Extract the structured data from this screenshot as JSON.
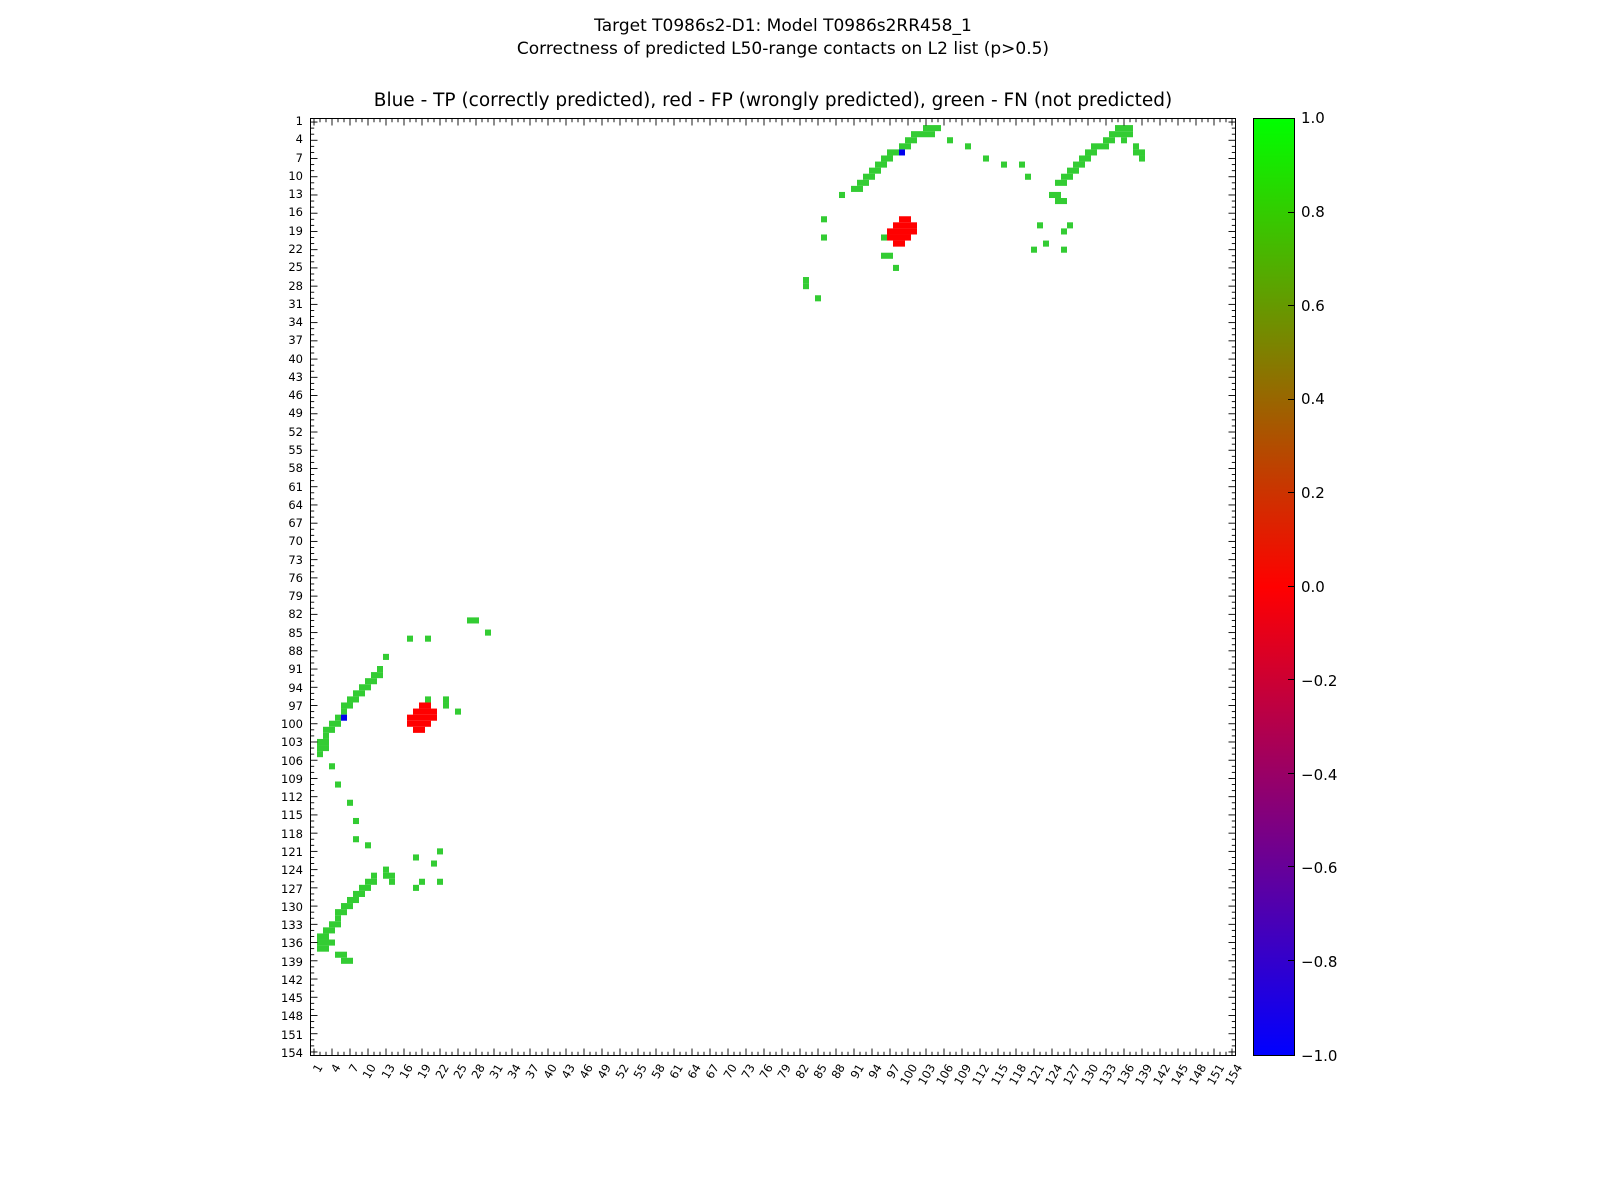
{
  "figure": {
    "suptitle": [
      "Target T0986s2-D1: Model T0986s2RR458_1",
      "Correctness of predicted L50-range contacts on L2 list (p>0.5)"
    ],
    "axes_title": "Blue - TP (correctly predicted), red - FP (wrongly predicted), green - FN (not predicted)"
  },
  "chart_data": {
    "type": "heatmap",
    "title": "Blue - TP (correctly predicted), red - FP (wrongly predicted), green - FN (not predicted)",
    "xlabel": "",
    "ylabel": "",
    "x_range": [
      1,
      154
    ],
    "y_range": [
      1,
      154
    ],
    "y_inverted": true,
    "grid": false,
    "symmetric_matrix": true,
    "tick_values": [
      1,
      4,
      7,
      10,
      13,
      16,
      19,
      22,
      25,
      28,
      31,
      34,
      37,
      40,
      43,
      46,
      49,
      52,
      55,
      58,
      61,
      64,
      67,
      70,
      73,
      76,
      79,
      82,
      85,
      88,
      91,
      94,
      97,
      100,
      103,
      106,
      109,
      112,
      115,
      118,
      121,
      124,
      127,
      130,
      133,
      136,
      139,
      142,
      145,
      148,
      151,
      154
    ],
    "colors": {
      "tp": "#0000ee",
      "fp": "#ff0000",
      "fn": "#33cc33"
    },
    "legend": {
      "tp": "TP (correctly predicted) - blue",
      "fp": "FP (wrongly predicted) - red",
      "fn": "FN (not predicted) - green"
    },
    "contacts": {
      "tp": [
        [
          6,
          99
        ]
      ],
      "fp": [
        [
          19,
          97
        ],
        [
          20,
          97
        ],
        [
          18,
          98
        ],
        [
          19,
          98
        ],
        [
          20,
          98
        ],
        [
          21,
          98
        ],
        [
          17,
          99
        ],
        [
          18,
          99
        ],
        [
          19,
          99
        ],
        [
          20,
          99
        ],
        [
          21,
          99
        ],
        [
          17,
          100
        ],
        [
          18,
          100
        ],
        [
          19,
          100
        ],
        [
          20,
          100
        ],
        [
          18,
          101
        ],
        [
          19,
          101
        ]
      ],
      "fn": [
        [
          2,
          103
        ],
        [
          2,
          104
        ],
        [
          2,
          105
        ],
        [
          3,
          101
        ],
        [
          3,
          102
        ],
        [
          3,
          103
        ],
        [
          3,
          104
        ],
        [
          4,
          100
        ],
        [
          4,
          101
        ],
        [
          5,
          99
        ],
        [
          5,
          100
        ],
        [
          6,
          97
        ],
        [
          6,
          98
        ],
        [
          7,
          96
        ],
        [
          7,
          97
        ],
        [
          8,
          95
        ],
        [
          8,
          96
        ],
        [
          9,
          94
        ],
        [
          9,
          95
        ],
        [
          10,
          93
        ],
        [
          10,
          94
        ],
        [
          11,
          92
        ],
        [
          11,
          93
        ],
        [
          12,
          91
        ],
        [
          12,
          92
        ],
        [
          13,
          89
        ],
        [
          17,
          86
        ],
        [
          20,
          86
        ],
        [
          27,
          83
        ],
        [
          28,
          83
        ],
        [
          30,
          85
        ],
        [
          20,
          96
        ],
        [
          23,
          96
        ],
        [
          23,
          97
        ],
        [
          25,
          98
        ],
        [
          4,
          107
        ],
        [
          5,
          110
        ],
        [
          7,
          113
        ],
        [
          8,
          116
        ],
        [
          8,
          119
        ],
        [
          10,
          120
        ],
        [
          11,
          125
        ],
        [
          11,
          126
        ],
        [
          10,
          126
        ],
        [
          10,
          127
        ],
        [
          9,
          127
        ],
        [
          9,
          128
        ],
        [
          8,
          128
        ],
        [
          8,
          129
        ],
        [
          7,
          129
        ],
        [
          7,
          130
        ],
        [
          6,
          130
        ],
        [
          6,
          131
        ],
        [
          5,
          131
        ],
        [
          5,
          132
        ],
        [
          5,
          133
        ],
        [
          4,
          133
        ],
        [
          4,
          134
        ],
        [
          3,
          134
        ],
        [
          3,
          135
        ],
        [
          2,
          135
        ],
        [
          2,
          136
        ],
        [
          3,
          136
        ],
        [
          4,
          136
        ],
        [
          2,
          137
        ],
        [
          3,
          137
        ],
        [
          5,
          138
        ],
        [
          6,
          138
        ],
        [
          6,
          139
        ],
        [
          7,
          139
        ],
        [
          13,
          124
        ],
        [
          13,
          125
        ],
        [
          14,
          125
        ],
        [
          14,
          126
        ],
        [
          18,
          122
        ],
        [
          18,
          127
        ],
        [
          19,
          126
        ],
        [
          21,
          123
        ],
        [
          22,
          121
        ],
        [
          22,
          126
        ]
      ]
    },
    "colorbar": {
      "min": -1.0,
      "max": 1.0,
      "tick_labels": [
        "1.0",
        "0.8",
        "0.6",
        "0.4",
        "0.2",
        "0.0",
        "−0.2",
        "−0.4",
        "−0.6",
        "−0.8",
        "−1.0"
      ],
      "gradient_top_to_bottom": [
        "#00ff00",
        "#ff0000",
        "#0000ff"
      ],
      "position": "right"
    }
  }
}
